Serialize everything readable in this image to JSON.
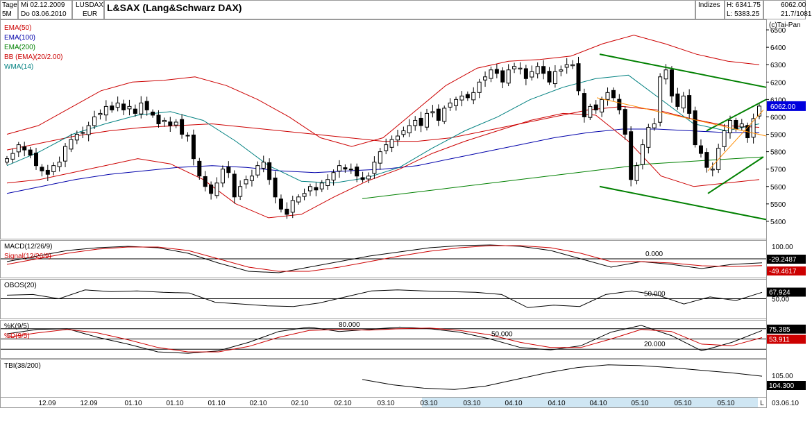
{
  "header": {
    "period_top": "Tage",
    "period_bottom": "5M",
    "date_from": "Mi 02.12.2009",
    "date_to": "Do 03.06.2010",
    "symbol": "LUSDAX",
    "currency": "EUR",
    "title": "L&SAX (Lang&Schwarz DAX)",
    "category": "Indizes",
    "high_label": "H: 6341.75",
    "low_label": "L: 5383.25",
    "last_value": "6062.00",
    "change": "21.7/1081",
    "copyright": "(c)Tai-Pan"
  },
  "colors": {
    "candle": "#000000",
    "ema50": "#cc0000",
    "ema100": "#0000aa",
    "ema200": "#008000",
    "bb": "#cc0000",
    "wma": "#008080",
    "macd": "#000000",
    "signal": "#cc0000",
    "trend_green": "#008000",
    "trend_orange": "#ff8c00",
    "price_tag": "#0000dd",
    "value_tag": "#000000",
    "signal_tag": "#cc0000"
  },
  "chart_data": [
    {
      "type": "candlestick",
      "panel": "price",
      "title": "L&SAX (Lang&Schwarz DAX)",
      "ylim": [
        5300,
        6560
      ],
      "yticks": [
        6500,
        6400,
        6300,
        6200,
        6100,
        6000,
        5900,
        5800,
        5700,
        5600,
        5500,
        5400
      ],
      "last_price": 6062,
      "legend": [
        "EMA(50)",
        "EMA(100)",
        "EMA(200)",
        "BB (EMA)(20/2.00)",
        "WMA(14)"
      ],
      "x_labels": [
        "12.09",
        "12.09",
        "01.10",
        "01.10",
        "01.10",
        "02.10",
        "02.10",
        "02.10",
        "03.10",
        "03.10",
        "03.10",
        "04.10",
        "04.10",
        "04.10",
        "05.10",
        "05.10",
        "05.10",
        "L"
      ],
      "current_date": "03.06.10",
      "closes": [
        5760,
        5790,
        5840,
        5810,
        5780,
        5720,
        5690,
        5670,
        5720,
        5740,
        5830,
        5870,
        5900,
        5910,
        5950,
        6000,
        6020,
        6060,
        6040,
        6080,
        6040,
        6060,
        6020,
        6080,
        6040,
        6010,
        5960,
        5980,
        5950,
        5970,
        5900,
        5890,
        5760,
        5660,
        5600,
        5560,
        5620,
        5700,
        5680,
        5540,
        5600,
        5640,
        5660,
        5720,
        5740,
        5640,
        5540,
        5470,
        5440,
        5520,
        5540,
        5560,
        5600,
        5580,
        5620,
        5640,
        5680,
        5720,
        5700,
        5700,
        5660,
        5640,
        5660,
        5740,
        5800,
        5840,
        5870,
        5890,
        5920,
        5950,
        5980,
        5950,
        6020,
        6030,
        5980,
        6050,
        6080,
        6100,
        6120,
        6110,
        6140,
        6200,
        6230,
        6270,
        6250,
        6200,
        6270,
        6290,
        6280,
        6220,
        6260,
        6290,
        6250,
        6200,
        6260,
        6270,
        6300,
        6300,
        6150,
        6000,
        6060,
        6040,
        6100,
        6140,
        6110,
        6040,
        5900,
        5640,
        5720,
        5840,
        5940,
        5960,
        6230,
        6270,
        6120,
        6060,
        6120,
        6020,
        5840,
        5790,
        5710,
        5700,
        5820,
        5920,
        5980,
        5930,
        5960,
        5880,
        5990,
        6062
      ],
      "overlays": [
        {
          "name": "EMA(50)",
          "start": 0,
          "values": [
            5810,
            5850,
            5890,
            5920,
            5940,
            5950,
            5960,
            5940,
            5920,
            5900,
            5880,
            5860,
            5860,
            5880,
            5920,
            5960,
            6000,
            6040,
            6060,
            6040,
            5990,
            5950,
            5940
          ]
        },
        {
          "name": "EMA(100)",
          "start": 0,
          "values": [
            5560,
            5600,
            5640,
            5670,
            5690,
            5710,
            5720,
            5710,
            5690,
            5680,
            5690,
            5700,
            5720,
            5760,
            5800,
            5840,
            5880,
            5910,
            5930,
            5930,
            5920,
            5910,
            5910
          ]
        },
        {
          "name": "EMA(200)",
          "start": 0,
          "values": [
            5530,
            5550,
            5570,
            5590,
            5610,
            5630,
            5650,
            5670,
            5690,
            5710,
            5730,
            5740,
            5750,
            5760,
            5770
          ]
        },
        {
          "name": "BB upper",
          "start": 0,
          "values": [
            5900,
            5950,
            6050,
            6150,
            6200,
            6210,
            6230,
            6180,
            6100,
            6000,
            5880,
            5830,
            5880,
            6030,
            6180,
            6280,
            6320,
            6330,
            6350,
            6420,
            6470,
            6420,
            6360,
            6320,
            6300
          ]
        },
        {
          "name": "BB lower",
          "start": 0,
          "values": [
            5620,
            5640,
            5680,
            5720,
            5760,
            5730,
            5640,
            5500,
            5420,
            5440,
            5540,
            5630,
            5700,
            5790,
            5860,
            5920,
            5980,
            6020,
            6010,
            5860,
            5660,
            5600,
            5620,
            5640
          ]
        },
        {
          "name": "WMA(14)",
          "start": 0,
          "values": [
            5720,
            5800,
            5900,
            5960,
            6010,
            6030,
            5980,
            5860,
            5720,
            5630,
            5620,
            5650,
            5710,
            5820,
            5920,
            6000,
            6100,
            6170,
            6220,
            6240,
            6100,
            5960,
            5920,
            5960
          ]
        }
      ]
    },
    {
      "type": "line",
      "panel": "macd",
      "title": "MACD(12/26/9)",
      "series": [
        {
          "name": "MACD(12/26/9)",
          "last": -29.2487,
          "values": [
            -20,
            20,
            60,
            80,
            90,
            80,
            40,
            -30,
            -90,
            -100,
            -60,
            -20,
            20,
            50,
            80,
            95,
            100,
            90,
            60,
            0,
            -60,
            -20,
            -40,
            -70,
            -40,
            -29
          ]
        },
        {
          "name": "Signal(12/26/9)",
          "last": -49.4617,
          "values": [
            -40,
            0,
            40,
            70,
            85,
            85,
            60,
            0,
            -60,
            -90,
            -90,
            -60,
            -20,
            20,
            55,
            80,
            95,
            95,
            80,
            40,
            -20,
            -20,
            -30,
            -50,
            -55,
            -49
          ]
        }
      ],
      "ylim": [
        -120,
        120
      ],
      "label_top": "100.00",
      "label_zero": "0.000",
      "last_value": "-29.2487",
      "last_signal": "-49.4617"
    },
    {
      "type": "line",
      "panel": "obos",
      "title": "OBOS(20)",
      "series": [
        {
          "name": "OBOS(20)",
          "values": [
            60,
            62,
            50,
            75,
            70,
            72,
            68,
            66,
            40,
            35,
            30,
            28,
            38,
            55,
            72,
            75,
            72,
            70,
            68,
            62,
            25,
            32,
            28,
            62,
            72,
            60,
            35,
            55,
            45,
            68
          ]
        }
      ],
      "ylim": [
        0,
        100
      ],
      "mid_level": 50,
      "label_mid": "50.000",
      "axis_label": "50.00",
      "last_value": "67.924"
    },
    {
      "type": "line",
      "panel": "stoch",
      "title": "%K(9/5)",
      "series": [
        {
          "name": "%K(9/5)",
          "last": 75.385,
          "values": [
            65,
            78,
            80,
            55,
            35,
            12,
            8,
            15,
            40,
            72,
            85,
            72,
            78,
            85,
            80,
            70,
            50,
            25,
            18,
            30,
            70,
            90,
            60,
            15,
            40,
            75
          ]
        },
        {
          "name": "%D(9/5)",
          "last": 53.911,
          "values": [
            55,
            68,
            78,
            68,
            48,
            25,
            12,
            12,
            28,
            55,
            75,
            78,
            76,
            80,
            82,
            75,
            62,
            40,
            25,
            25,
            50,
            78,
            72,
            35,
            30,
            54
          ]
        }
      ],
      "ylim": [
        0,
        100
      ],
      "levels": [
        80,
        50,
        20
      ],
      "label_80": "80.000",
      "label_50": "50.000",
      "label_20": "20.000",
      "last_k": "75.385",
      "last_d": "53.911"
    },
    {
      "type": "line",
      "panel": "tbi",
      "title": "TBI(38/200)",
      "series": [
        {
          "name": "TBI(38/200)",
          "start_index": 40,
          "values": [
            103.8,
            103.0,
            102.5,
            102.3,
            102.8,
            103.8,
            104.8,
            105.6,
            106.0,
            105.9,
            105.6,
            105.2,
            104.8,
            104.3
          ]
        }
      ],
      "ylim": [
        101.5,
        106.5
      ],
      "axis_label": "105.00",
      "last_value": "104.300"
    }
  ]
}
